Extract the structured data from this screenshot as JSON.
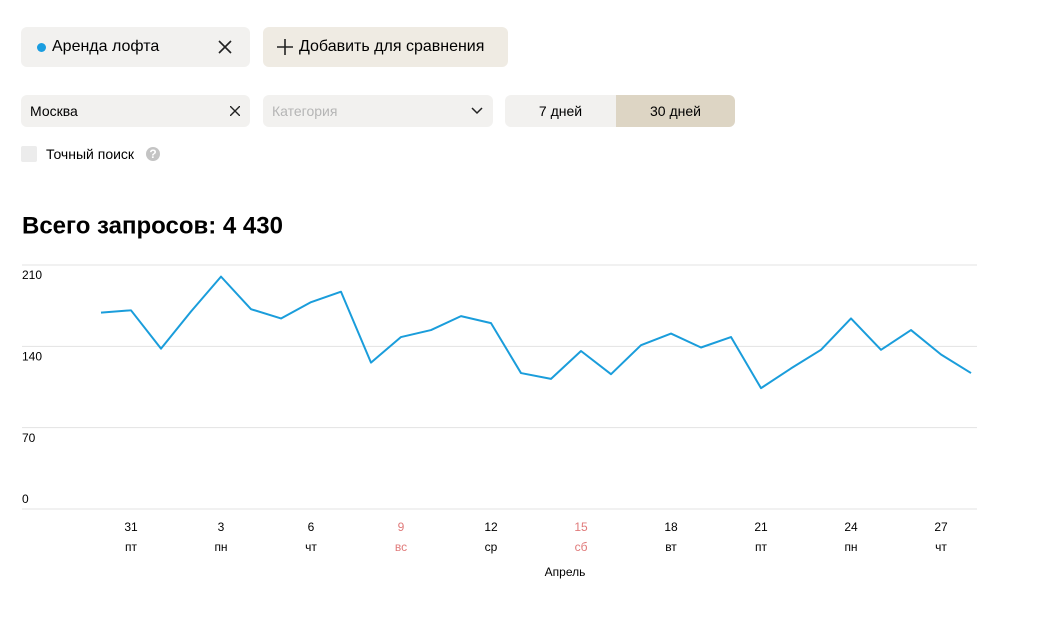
{
  "controls": {
    "query": "Аренда лофта",
    "add_compare": "Добавить для сравнения",
    "region": "Москва",
    "category_placeholder": "Категория",
    "period_options": [
      "7 дней",
      "30 дней"
    ],
    "exact_search": "Точный поиск"
  },
  "chart_data": {
    "type": "line",
    "title": "Всего запросов: 4 430",
    "x_label": "Апрель",
    "categories": [
      null,
      "31",
      null,
      null,
      "3",
      null,
      null,
      "6",
      null,
      null,
      "9",
      null,
      null,
      "12",
      null,
      null,
      "15",
      null,
      null,
      "18",
      null,
      null,
      "21",
      null,
      null,
      "24",
      null,
      null,
      "27",
      null
    ],
    "weekdays": [
      null,
      "пт",
      null,
      null,
      "пн",
      null,
      null,
      "чт",
      null,
      null,
      "вс",
      null,
      null,
      "ср",
      null,
      null,
      "сб",
      null,
      null,
      "вт",
      null,
      null,
      "пт",
      null,
      null,
      "пн",
      null,
      null,
      "чт",
      null
    ],
    "tick_colors": [
      null,
      "#000000",
      null,
      null,
      "#000000",
      null,
      null,
      "#000000",
      null,
      null,
      "#e07a7a",
      null,
      null,
      "#000000",
      null,
      null,
      "#e07a7a",
      null,
      null,
      "#000000",
      null,
      null,
      "#000000",
      null,
      null,
      "#000000",
      null,
      null,
      "#000000",
      null
    ],
    "series": [
      {
        "name": "Аренда лофта",
        "color": "#1a9ddb",
        "values": [
          169,
          171,
          138,
          170,
          200,
          172,
          164,
          178,
          187,
          126,
          148,
          154,
          166,
          160,
          117,
          112,
          136,
          116,
          141,
          151,
          139,
          148,
          104,
          121,
          137,
          164,
          137,
          154,
          133,
          117
        ]
      }
    ],
    "ylim": [
      0,
      210
    ],
    "yticks": [
      0,
      70,
      140,
      210
    ],
    "grid": true
  }
}
